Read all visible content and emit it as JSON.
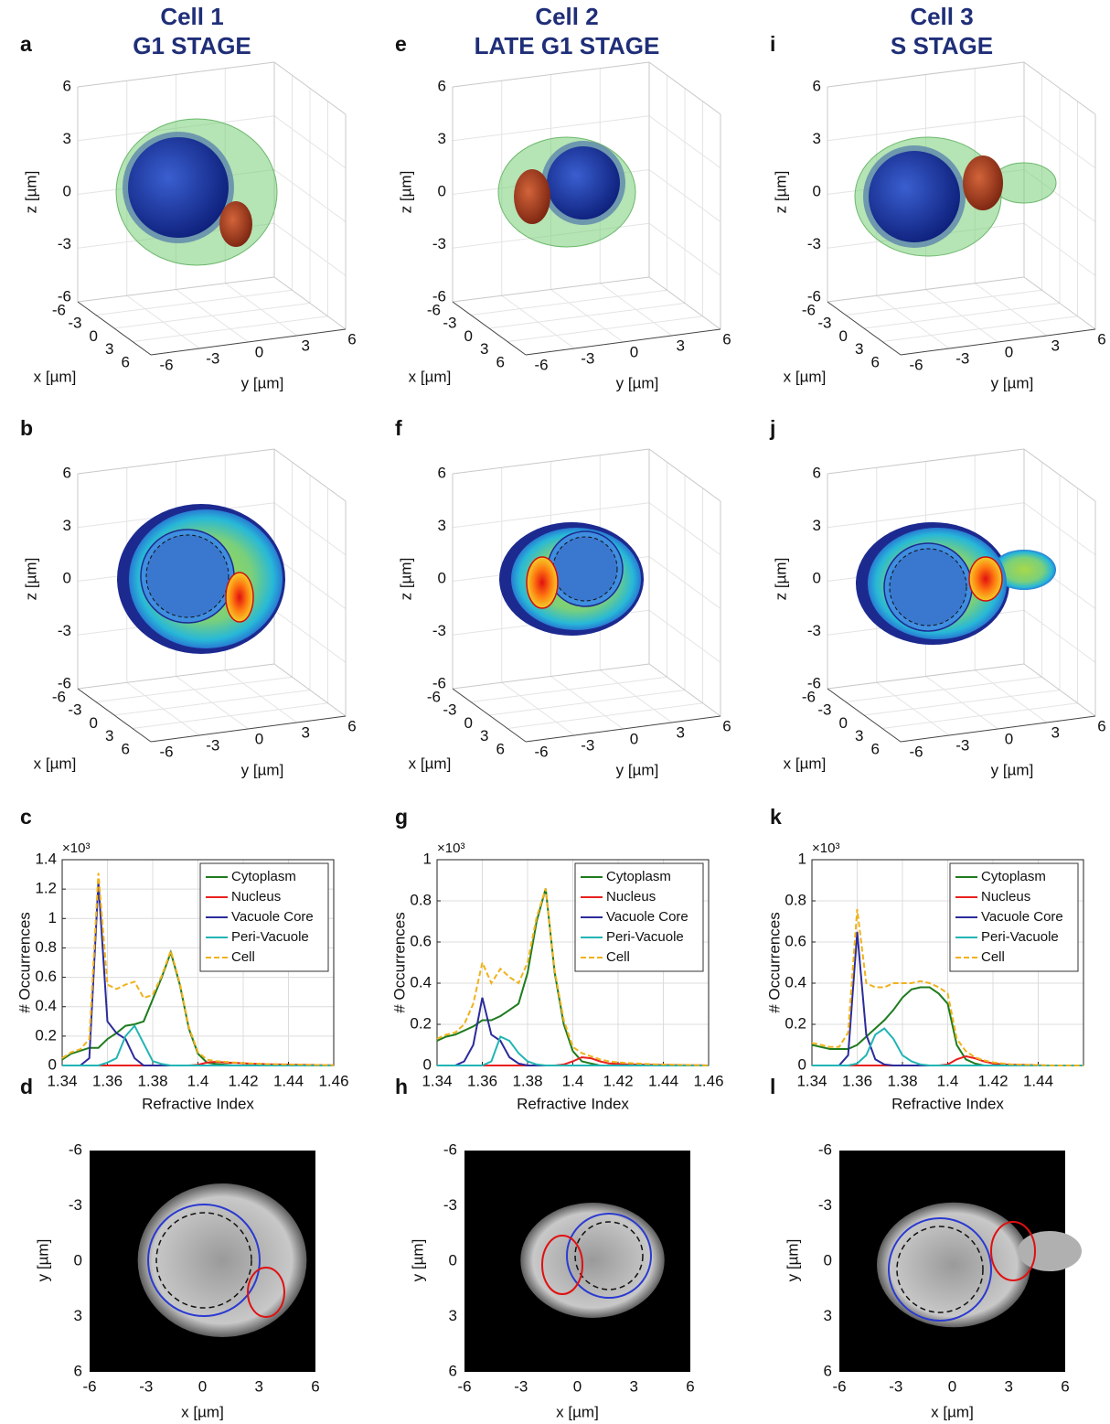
{
  "figure": {
    "columns": [
      {
        "title": "Cell 1",
        "stage": "G1 STAGE",
        "panels": [
          "a",
          "b",
          "c",
          "d"
        ]
      },
      {
        "title": "Cell 2",
        "stage": "LATE G1 STAGE",
        "panels": [
          "e",
          "f",
          "g",
          "h"
        ]
      },
      {
        "title": "Cell 3",
        "stage": "S STAGE",
        "panels": [
          "i",
          "j",
          "k",
          "l"
        ]
      }
    ],
    "render_axes": {
      "z_label": "z [µm]",
      "x_label": "x [µm]",
      "y_label": "y [µm]",
      "ticks": [
        -6,
        -3,
        0,
        3,
        6
      ]
    },
    "slice_axes": {
      "x_label": "x [µm]",
      "y_label": "y [µm]",
      "ticks": [
        -6,
        -3,
        0,
        3,
        6
      ]
    }
  },
  "chart_data": [
    {
      "type": "line",
      "x_label": "Refractive Index",
      "y_label": "# Occurrences",
      "y_multiplier": "×10³",
      "x": [
        1.34,
        1.344,
        1.348,
        1.352,
        1.356,
        1.36,
        1.364,
        1.368,
        1.372,
        1.376,
        1.38,
        1.384,
        1.388,
        1.392,
        1.396,
        1.4,
        1.404,
        1.408,
        1.412,
        1.416,
        1.42,
        1.424,
        1.428,
        1.432,
        1.436,
        1.44,
        1.444,
        1.448,
        1.452,
        1.456,
        1.46
      ],
      "xlim": [
        1.34,
        1.46
      ],
      "ylim": [
        0,
        1.4
      ],
      "xticks": [
        1.34,
        1.36,
        1.38,
        1.4,
        1.42,
        1.44,
        1.46
      ],
      "yticks": [
        0,
        0.2,
        0.4,
        0.6,
        0.8,
        1,
        1.2,
        1.4
      ],
      "grid": true,
      "legend": "upper right",
      "series": [
        {
          "name": "Cytoplasm",
          "color": "#1e7b1e",
          "values": [
            0.04,
            0.08,
            0.1,
            0.12,
            0.12,
            0.18,
            0.22,
            0.27,
            0.28,
            0.3,
            0.45,
            0.6,
            0.77,
            0.55,
            0.25,
            0.08,
            0.02,
            0.01,
            0.005,
            0,
            0,
            0,
            0,
            0,
            0,
            0,
            0,
            0,
            0,
            0,
            0
          ]
        },
        {
          "name": "Nucleus",
          "color": "#e8201e",
          "values": [
            0,
            0,
            0,
            0,
            0,
            0,
            0,
            0,
            0,
            0,
            0,
            0,
            0,
            0,
            0,
            0.005,
            0.02,
            0.025,
            0.02,
            0.018,
            0.015,
            0.012,
            0.01,
            0.008,
            0.007,
            0.006,
            0.005,
            0.004,
            0.003,
            0.002,
            0.001
          ]
        },
        {
          "name": "Vacuole Core",
          "color": "#2b2b9c",
          "values": [
            0,
            0,
            0,
            0.05,
            1.25,
            0.3,
            0.22,
            0.18,
            0.05,
            0,
            0,
            0,
            0,
            0,
            0,
            0,
            0,
            0,
            0,
            0,
            0,
            0,
            0,
            0,
            0,
            0,
            0,
            0,
            0,
            0,
            0
          ]
        },
        {
          "name": "Peri-Vacuole",
          "color": "#22b4b4",
          "values": [
            0,
            0,
            0,
            0,
            0,
            0.02,
            0.05,
            0.2,
            0.27,
            0.15,
            0.03,
            0.01,
            0,
            0,
            0,
            0,
            0,
            0,
            0,
            0,
            0,
            0,
            0,
            0,
            0,
            0,
            0,
            0,
            0,
            0,
            0
          ]
        },
        {
          "name": "Cell",
          "color": "#f0b21c",
          "dash": true,
          "values": [
            0.05,
            0.09,
            0.11,
            0.18,
            1.31,
            0.55,
            0.52,
            0.55,
            0.57,
            0.46,
            0.48,
            0.61,
            0.78,
            0.56,
            0.26,
            0.09,
            0.04,
            0.03,
            0.025,
            0.02,
            0.016,
            0.013,
            0.011,
            0.009,
            0.008,
            0.007,
            0.006,
            0.005,
            0.004,
            0.003,
            0.002
          ]
        }
      ]
    },
    {
      "type": "line",
      "x_label": "Refractive Index",
      "y_label": "# Occurrences",
      "y_multiplier": "×10³",
      "x": [
        1.34,
        1.344,
        1.348,
        1.352,
        1.356,
        1.36,
        1.364,
        1.368,
        1.372,
        1.376,
        1.38,
        1.384,
        1.388,
        1.392,
        1.396,
        1.4,
        1.404,
        1.408,
        1.412,
        1.416,
        1.42,
        1.424,
        1.428,
        1.432,
        1.436,
        1.44,
        1.444,
        1.448,
        1.452,
        1.456,
        1.46
      ],
      "xlim": [
        1.34,
        1.46
      ],
      "ylim": [
        0,
        1
      ],
      "xticks": [
        1.34,
        1.36,
        1.38,
        1.4,
        1.42,
        1.44,
        1.46
      ],
      "yticks": [
        0,
        0.2,
        0.4,
        0.6,
        0.8,
        1
      ],
      "grid": true,
      "legend": "upper right",
      "series": [
        {
          "name": "Cytoplasm",
          "color": "#1e7b1e",
          "values": [
            0.12,
            0.14,
            0.15,
            0.17,
            0.19,
            0.22,
            0.22,
            0.24,
            0.27,
            0.3,
            0.45,
            0.7,
            0.86,
            0.45,
            0.2,
            0.07,
            0.02,
            0.01,
            0,
            0,
            0,
            0,
            0,
            0,
            0,
            0,
            0,
            0,
            0,
            0,
            0
          ]
        },
        {
          "name": "Nucleus",
          "color": "#e8201e",
          "values": [
            0,
            0,
            0,
            0,
            0,
            0,
            0,
            0,
            0,
            0,
            0,
            0,
            0,
            0,
            0.005,
            0.02,
            0.04,
            0.035,
            0.02,
            0.01,
            0.008,
            0.006,
            0.005,
            0.004,
            0.003,
            0.002,
            0.002,
            0.001,
            0.001,
            0.001,
            0
          ]
        },
        {
          "name": "Vacuole Core",
          "color": "#2b2b9c",
          "values": [
            0,
            0,
            0,
            0.02,
            0.1,
            0.33,
            0.15,
            0.12,
            0.04,
            0.01,
            0,
            0,
            0,
            0,
            0,
            0,
            0,
            0,
            0,
            0,
            0,
            0,
            0,
            0,
            0,
            0,
            0,
            0,
            0,
            0,
            0
          ]
        },
        {
          "name": "Peri-Vacuole",
          "color": "#22b4b4",
          "values": [
            0,
            0,
            0,
            0,
            0,
            0,
            0.02,
            0.14,
            0.12,
            0.06,
            0.02,
            0.005,
            0,
            0,
            0,
            0,
            0,
            0,
            0,
            0,
            0,
            0,
            0,
            0,
            0,
            0,
            0,
            0,
            0,
            0,
            0
          ]
        },
        {
          "name": "Cell",
          "color": "#f0b21c",
          "dash": true,
          "values": [
            0.13,
            0.15,
            0.16,
            0.2,
            0.3,
            0.5,
            0.4,
            0.47,
            0.43,
            0.4,
            0.5,
            0.72,
            0.86,
            0.46,
            0.22,
            0.09,
            0.06,
            0.045,
            0.03,
            0.02,
            0.015,
            0.012,
            0.01,
            0.008,
            0.006,
            0.005,
            0.004,
            0.003,
            0.002,
            0.001,
            0
          ]
        }
      ]
    },
    {
      "type": "line",
      "x_label": "Refractive Index",
      "y_label": "# Occurrences",
      "y_multiplier": "×10³",
      "x": [
        1.34,
        1.344,
        1.348,
        1.352,
        1.356,
        1.36,
        1.364,
        1.368,
        1.372,
        1.376,
        1.38,
        1.384,
        1.388,
        1.392,
        1.396,
        1.4,
        1.404,
        1.408,
        1.412,
        1.416,
        1.42,
        1.424,
        1.428,
        1.432,
        1.436,
        1.44,
        1.444,
        1.448,
        1.452,
        1.456,
        1.46
      ],
      "xlim": [
        1.34,
        1.46
      ],
      "ylim": [
        0,
        1
      ],
      "xticks": [
        1.34,
        1.36,
        1.38,
        1.4,
        1.42,
        1.44
      ],
      "yticks": [
        0,
        0.2,
        0.4,
        0.6,
        0.8,
        1
      ],
      "grid": true,
      "legend": "upper right",
      "series": [
        {
          "name": "Cytoplasm",
          "color": "#1e7b1e",
          "values": [
            0.1,
            0.09,
            0.08,
            0.08,
            0.08,
            0.1,
            0.14,
            0.18,
            0.22,
            0.27,
            0.33,
            0.37,
            0.38,
            0.38,
            0.35,
            0.3,
            0.1,
            0.03,
            0.01,
            0,
            0,
            0,
            0,
            0,
            0,
            0,
            0,
            0,
            0,
            0,
            0
          ]
        },
        {
          "name": "Nucleus",
          "color": "#e8201e",
          "values": [
            0,
            0,
            0,
            0,
            0,
            0,
            0,
            0,
            0,
            0,
            0,
            0,
            0,
            0,
            0,
            0.005,
            0.03,
            0.045,
            0.035,
            0.02,
            0.01,
            0.006,
            0.004,
            0.003,
            0.002,
            0.001,
            0,
            0,
            0,
            0,
            0
          ]
        },
        {
          "name": "Vacuole Core",
          "color": "#2b2b9c",
          "values": [
            0,
            0,
            0,
            0,
            0.05,
            0.65,
            0.15,
            0.03,
            0.005,
            0,
            0,
            0,
            0,
            0,
            0,
            0,
            0,
            0,
            0,
            0,
            0,
            0,
            0,
            0,
            0,
            0,
            0,
            0,
            0,
            0,
            0
          ]
        },
        {
          "name": "Peri-Vacuole",
          "color": "#22b4b4",
          "values": [
            0,
            0,
            0,
            0,
            0,
            0.01,
            0.05,
            0.15,
            0.18,
            0.13,
            0.05,
            0.02,
            0.005,
            0,
            0,
            0,
            0,
            0,
            0,
            0,
            0,
            0,
            0,
            0,
            0,
            0,
            0,
            0,
            0,
            0,
            0
          ]
        },
        {
          "name": "Cell",
          "color": "#f0b21c",
          "dash": true,
          "values": [
            0.11,
            0.1,
            0.09,
            0.09,
            0.16,
            0.76,
            0.4,
            0.38,
            0.38,
            0.4,
            0.4,
            0.4,
            0.41,
            0.4,
            0.38,
            0.35,
            0.13,
            0.07,
            0.04,
            0.025,
            0.015,
            0.01,
            0.006,
            0.004,
            0.003,
            0.002,
            0.001,
            0,
            0,
            0,
            0
          ]
        }
      ]
    }
  ]
}
